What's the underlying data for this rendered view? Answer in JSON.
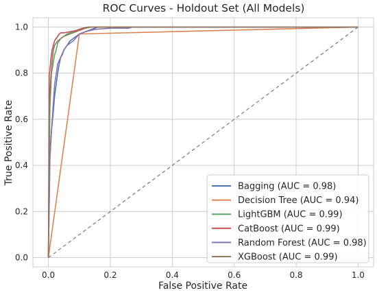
{
  "chart_data": {
    "type": "line",
    "title": "ROC Curves - Holdout Set (All Models)",
    "xlabel": "False Positive Rate",
    "ylabel": "True Positive Rate",
    "xlim": [
      -0.05,
      1.05
    ],
    "ylim": [
      -0.04,
      1.04
    ],
    "xticks": [
      "0.0",
      "0.2",
      "0.4",
      "0.6",
      "0.8",
      "1.0"
    ],
    "yticks": [
      "0.0",
      "0.2",
      "0.4",
      "0.6",
      "0.8",
      "1.0"
    ],
    "grid": true,
    "legend_position": "bottom-right",
    "series": [
      {
        "name": "Bagging (AUC = 0.98)",
        "color": "#4c72b0",
        "x": [
          0,
          0.005,
          0.01,
          0.015,
          0.02,
          0.025,
          0.03,
          0.035,
          0.04,
          0.045,
          0.05,
          0.06,
          0.07,
          0.09,
          0.1,
          0.12,
          0.14,
          0.16,
          0.2,
          1
        ],
        "y": [
          0,
          0.45,
          0.55,
          0.62,
          0.7,
          0.75,
          0.8,
          0.84,
          0.87,
          0.88,
          0.9,
          0.92,
          0.94,
          0.96,
          0.97,
          0.98,
          0.99,
          1,
          1,
          1
        ]
      },
      {
        "name": "Decision Tree (AUC = 0.94)",
        "color": "#dd8452",
        "x": [
          0,
          0.1,
          1
        ],
        "y": [
          0,
          0.97,
          1
        ]
      },
      {
        "name": "LightGBM (AUC = 0.99)",
        "color": "#55a868",
        "x": [
          0,
          0.005,
          0.01,
          0.02,
          0.025,
          0.03,
          0.04,
          0.05,
          0.06,
          0.08,
          0.1,
          0.12,
          0.14,
          1
        ],
        "y": [
          0,
          0.65,
          0.8,
          0.88,
          0.9,
          0.93,
          0.95,
          0.96,
          0.97,
          0.98,
          0.99,
          0.995,
          1,
          1
        ]
      },
      {
        "name": "CatBoost (AUC = 0.99)",
        "color": "#c44e52",
        "x": [
          0,
          0.003,
          0.008,
          0.012,
          0.016,
          0.02,
          0.025,
          0.03,
          0.035,
          0.04,
          0.05,
          0.07,
          0.09,
          0.11,
          0.13,
          1
        ],
        "y": [
          0,
          0.79,
          0.86,
          0.9,
          0.92,
          0.94,
          0.95,
          0.96,
          0.97,
          0.975,
          0.975,
          0.98,
          0.985,
          0.995,
          1,
          1
        ]
      },
      {
        "name": "Random Forest (AUC = 0.98)",
        "color": "#8172b3",
        "x": [
          0,
          0.005,
          0.01,
          0.015,
          0.02,
          0.03,
          0.04,
          0.05,
          0.06,
          0.08,
          0.1,
          0.12,
          0.15,
          0.2,
          0.26,
          0.27,
          1
        ],
        "y": [
          0,
          0.43,
          0.55,
          0.65,
          0.75,
          0.84,
          0.87,
          0.9,
          0.92,
          0.94,
          0.97,
          0.98,
          0.99,
          0.995,
          0.995,
          1,
          1
        ]
      },
      {
        "name": "XGBoost (AUC = 0.99)",
        "color": "#937860",
        "x": [
          0,
          0.003,
          0.008,
          0.012,
          0.016,
          0.02,
          0.025,
          0.03,
          0.04,
          0.05,
          0.07,
          0.09,
          0.11,
          0.13,
          1
        ],
        "y": [
          0,
          0.66,
          0.78,
          0.85,
          0.9,
          0.92,
          0.93,
          0.94,
          0.95,
          0.96,
          0.97,
          0.98,
          0.99,
          1,
          1
        ]
      }
    ],
    "reference_line": {
      "x": [
        0,
        1
      ],
      "y": [
        0,
        1
      ],
      "color": "#7a7a7a",
      "style": "dashed"
    }
  }
}
